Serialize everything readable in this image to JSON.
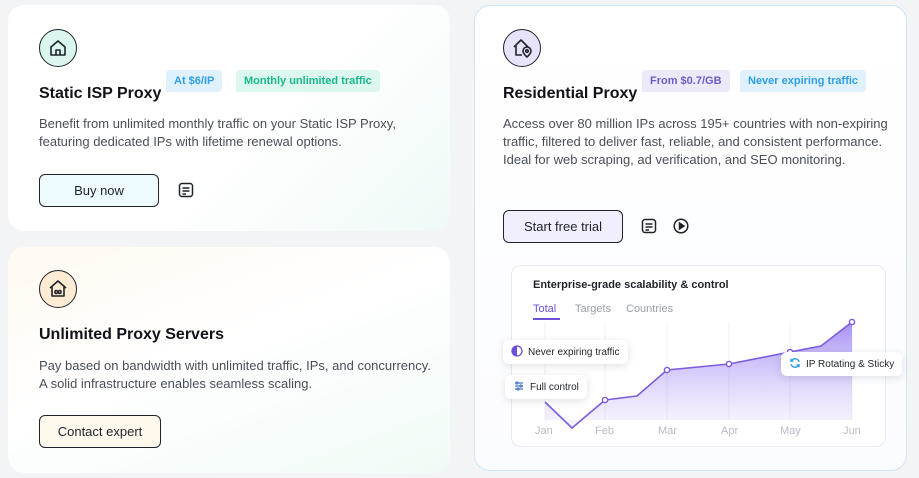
{
  "cards": {
    "static_isp": {
      "title": "Static ISP Proxy",
      "tags": [
        "At $6/IP",
        "Monthly unlimited traffic"
      ],
      "description": "Benefit from unlimited monthly traffic on your Static ISP Proxy, featuring dedicated IPs with lifetime renewal options.",
      "button_label": "Buy now",
      "icon": "house-icon"
    },
    "unlimited": {
      "title": "Unlimited Proxy Servers",
      "description": "Pay based on bandwidth with unlimited traffic, IPs, and concurrency. A solid infrastructure enables seamless scaling.",
      "button_label": "Contact expert",
      "icon": "house-infinity-icon"
    },
    "residential": {
      "title": "Residential Proxy",
      "tags": [
        "From $0.7/GB",
        "Never expiring traffic"
      ],
      "description": "Access over 80 million IPs across 195+ countries with non-expiring traffic, filtered to deliver fast, reliable, and consistent performance. Ideal for web scraping, ad verification, and SEO monitoring.",
      "button_label": "Start free trial",
      "icon": "house-location-icon"
    }
  },
  "chart": {
    "heading": "Enterprise-grade scalability & control",
    "tabs": [
      "Total",
      "Targets",
      "Countries"
    ],
    "active_tab": "Total",
    "chips": {
      "never_expiring": "Never expiring traffic",
      "full_control": "Full control",
      "ip_rotating": "IP Rotating & Sticky"
    }
  },
  "chart_data": {
    "type": "area",
    "categories": [
      "Jan",
      "Feb",
      "Mar",
      "Apr",
      "May",
      "Jun"
    ],
    "x": [
      "Jan",
      "Jan-Feb",
      "Feb",
      "Feb-Mar",
      "Mar",
      "Apr",
      "May",
      "May-Jun",
      "Jun"
    ],
    "values": [
      19,
      6,
      20,
      22,
      35,
      38,
      44,
      47,
      59
    ],
    "ylim": [
      0,
      70
    ],
    "grid": "vertical",
    "color": "#7b5ce0"
  },
  "colors": {
    "accent": "#6d4fd8",
    "tag_blue": "#2e9ee6",
    "tag_green": "#18b889",
    "tag_purple": "#6f5cc7"
  }
}
